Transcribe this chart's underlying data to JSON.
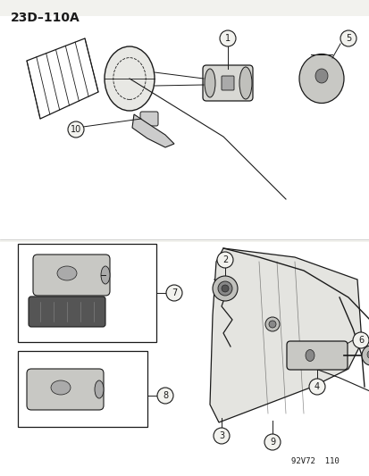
{
  "title_code": "23D–110A",
  "footer_code": "92V72  110",
  "bg_color": "#f2f2ee",
  "line_color": "#1a1a1a",
  "upper_bg": "#ffffff",
  "lower_bg": "#ffffff"
}
